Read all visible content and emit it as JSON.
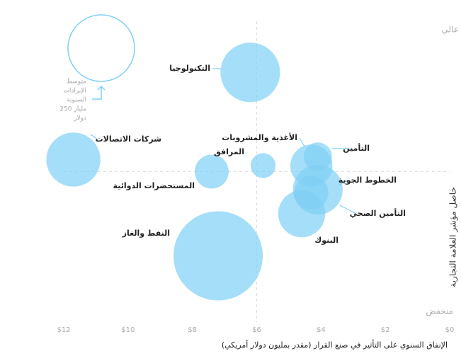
{
  "chart_data": {
    "type": "scatter",
    "x_title": "الإنفاق السنوي على التأثير في صنع القرار (مقدر بمليون دولار أمريكي)",
    "y_title": "حاصل مؤشر العلامة التجارية",
    "y_high_label": "عالي",
    "y_low_label": "منخفض",
    "xlim": [
      12,
      0
    ],
    "ylim": [
      0,
      10
    ],
    "xticks": [
      {
        "value": 12,
        "label": "$12"
      },
      {
        "value": 10,
        "label": "$10"
      },
      {
        "value": 8,
        "label": "$8"
      },
      {
        "value": 6,
        "label": "$6"
      },
      {
        "value": 4,
        "label": "$4"
      },
      {
        "value": 2,
        "label": "$2"
      },
      {
        "value": 0,
        "label": "$0"
      }
    ],
    "x_divider": 6,
    "y_divider": 5,
    "series": [
      {
        "color": "#7fd0f5",
        "labels": [
          "التكنولوجيا",
          "شركات الاتصالات",
          "المستحضرات الدوائية",
          "المرافق",
          "الأغذية والمشروبات",
          "التأمين",
          "الخطوط الجوية",
          "التأمين الصحي",
          "البنوك",
          "النفط والغاز"
        ],
        "x": [
          6.2,
          11.7,
          7.4,
          5.8,
          4.3,
          4.1,
          4.1,
          4.3,
          4.6,
          7.2
        ],
        "values": [
          8.3,
          5.4,
          5.0,
          5.2,
          5.2,
          5.5,
          4.4,
          4.3,
          3.6,
          2.2
        ],
        "sizes": [
          200,
          165,
          65,
          35,
          100,
          45,
          140,
          65,
          125,
          450
        ]
      }
    ],
    "size_legend": {
      "value": 250,
      "lines": [
        "متوسط",
        "الإيرادات",
        "السنوية",
        "250 مليار",
        "دولار"
      ]
    }
  }
}
